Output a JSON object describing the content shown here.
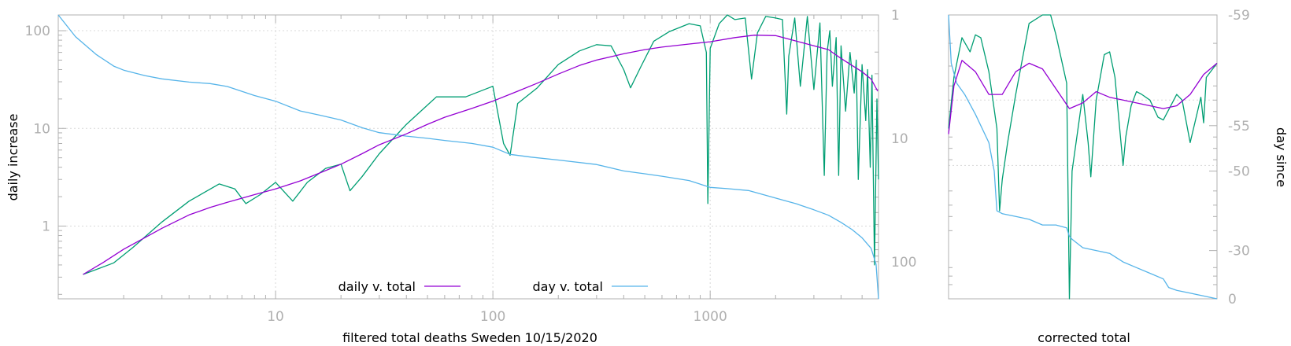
{
  "chart_data": [
    {
      "type": "line",
      "xlabel": "filtered total deaths Sweden 10/15/2020",
      "ylabel": "daily increase",
      "y2label": "",
      "xscale": "log",
      "yscale": "log",
      "y2scale": "log-reversed",
      "xlim": [
        1.0,
        5950
      ],
      "ylim": [
        0.18,
        145
      ],
      "y2lim": [
        1,
        200
      ],
      "x_ticks": [
        "10",
        "100",
        "1000"
      ],
      "y_ticks": [
        "1",
        "10",
        "100"
      ],
      "y2_ticks": [
        "1",
        "10",
        "100"
      ],
      "grid": true,
      "legend": "bottom-center",
      "colors": {
        "daily_v_total": "#9400d3",
        "day_v_total": "#56b4e9",
        "raw_daily": "#009e73"
      },
      "series": [
        {
          "name": "daily v. total",
          "axis": "y",
          "x": [
            1.3,
            1.6,
            2,
            2.5,
            3,
            4,
            5,
            6,
            8,
            10,
            13,
            16,
            20,
            25,
            30,
            40,
            50,
            60,
            80,
            100,
            130,
            160,
            200,
            250,
            300,
            400,
            500,
            600,
            800,
            1000,
            1300,
            1600,
            2000,
            2500,
            3000,
            3500,
            4000,
            4500,
            5000,
            5500,
            5900
          ],
          "values": [
            0.32,
            0.42,
            0.58,
            0.76,
            0.95,
            1.3,
            1.55,
            1.75,
            2.1,
            2.4,
            2.9,
            3.5,
            4.3,
            5.5,
            6.8,
            8.8,
            11,
            13,
            16,
            19,
            24,
            29,
            36,
            44,
            50,
            58,
            64,
            68,
            73,
            77,
            85,
            90,
            89,
            78,
            70,
            64,
            52,
            44,
            38,
            32,
            24
          ]
        },
        {
          "name": "day v. total",
          "axis": "y2",
          "x": [
            1.0,
            1.2,
            1.5,
            1.8,
            2,
            2.5,
            3,
            4,
            5,
            6,
            8,
            10,
            13,
            16,
            20,
            25,
            30,
            40,
            50,
            60,
            80,
            100,
            120,
            150,
            200,
            300,
            400,
            500,
            600,
            800,
            1000,
            1200,
            1500,
            2000,
            2500,
            3000,
            3500,
            4000,
            4500,
            5000,
            5500,
            5800,
            5950
          ],
          "values": [
            1.0,
            1.5,
            2.1,
            2.6,
            2.8,
            3.1,
            3.3,
            3.5,
            3.6,
            3.8,
            4.5,
            5.0,
            6.0,
            6.5,
            7.1,
            8.2,
            9.0,
            9.6,
            10.0,
            10.4,
            11.0,
            11.8,
            13.5,
            14.2,
            15.0,
            16.3,
            18.4,
            19.4,
            20.3,
            22.0,
            25.0,
            25.6,
            26.5,
            30.5,
            34.0,
            38.0,
            42.0,
            48.0,
            55.0,
            64.0,
            78.0,
            105.0,
            200.0
          ]
        },
        {
          "name": "",
          "axis": "y",
          "x": [
            1.3,
            1.8,
            2.2,
            3,
            4,
            5.5,
            6.5,
            7.3,
            8.5,
            10,
            12,
            14,
            17,
            20,
            22,
            25,
            30,
            40,
            55,
            75,
            100,
            112,
            120,
            130,
            160,
            200,
            250,
            300,
            350,
            400,
            430,
            480,
            550,
            650,
            800,
            900,
            960,
            975,
            1000,
            1100,
            1200,
            1300,
            1450,
            1550,
            1650,
            1800,
            2000,
            2150,
            2250,
            2300,
            2450,
            2600,
            2800,
            3000,
            3200,
            3350,
            3450,
            3550,
            3650,
            3800,
            3900,
            4000,
            4200,
            4400,
            4600,
            4700,
            4800,
            5000,
            5200,
            5300,
            5450,
            5550,
            5700,
            5850,
            5950
          ],
          "values": [
            0.32,
            0.42,
            0.6,
            1.1,
            1.8,
            2.7,
            2.4,
            1.7,
            2.1,
            2.8,
            1.8,
            2.8,
            3.9,
            4.3,
            2.3,
            3.2,
            5.5,
            11,
            21,
            21,
            27,
            7,
            5.3,
            18,
            26,
            45,
            62,
            72,
            70,
            40,
            26,
            43,
            78,
            98,
            118,
            112,
            60,
            1.7,
            66,
            118,
            145,
            130,
            135,
            32,
            95,
            140,
            135,
            130,
            14,
            55,
            135,
            27,
            140,
            25,
            120,
            3.3,
            60,
            100,
            27,
            85,
            3.3,
            70,
            15,
            60,
            23,
            50,
            3,
            45,
            12,
            40,
            4,
            35,
            0.4,
            20,
            3
          ]
        }
      ]
    },
    {
      "type": "line",
      "xlabel": "corrected total",
      "ylabel": "",
      "y2label": "day since",
      "x_ticks": [],
      "y2_ticks": [
        "-59",
        "-55",
        "-50",
        "-30",
        "0"
      ],
      "legend": "none",
      "series": [
        {
          "name": "",
          "x": [
            0,
            2,
            5,
            10,
            15,
            20,
            25,
            30,
            35,
            40,
            45,
            50,
            55,
            60,
            65,
            70,
            75,
            80,
            85,
            90,
            95,
            100
          ],
          "values": [
            0.58,
            0.75,
            0.84,
            0.8,
            0.72,
            0.72,
            0.8,
            0.83,
            0.81,
            0.74,
            0.67,
            0.69,
            0.73,
            0.71,
            0.7,
            0.69,
            0.68,
            0.67,
            0.68,
            0.72,
            0.79,
            0.83
          ]
        },
        {
          "name": "",
          "x": [
            0,
            1,
            3,
            6,
            10,
            15,
            17,
            18,
            20,
            25,
            30,
            35,
            40,
            44,
            45,
            46,
            50,
            55,
            60,
            65,
            70,
            75,
            80,
            82,
            85,
            90,
            95,
            100
          ],
          "values": [
            1.0,
            0.83,
            0.76,
            0.72,
            0.65,
            0.55,
            0.45,
            0.31,
            0.3,
            0.29,
            0.28,
            0.26,
            0.26,
            0.25,
            0.22,
            0.21,
            0.18,
            0.17,
            0.16,
            0.13,
            0.11,
            0.09,
            0.07,
            0.04,
            0.03,
            0.02,
            0.01,
            0.0
          ]
        },
        {
          "name": "",
          "x": [
            0,
            2,
            5,
            8,
            10,
            12,
            15,
            18,
            19,
            20,
            22,
            25,
            30,
            35,
            38,
            40,
            44,
            45,
            46,
            50,
            52,
            53,
            55,
            58,
            60,
            62,
            65,
            66,
            68,
            70,
            72,
            75,
            78,
            80,
            85,
            87,
            90,
            92,
            94,
            95,
            96,
            100
          ],
          "values": [
            0.6,
            0.78,
            0.92,
            0.87,
            0.93,
            0.92,
            0.8,
            0.6,
            0.31,
            0.42,
            0.55,
            0.72,
            0.97,
            1.0,
            1.0,
            0.93,
            0.76,
            0.0,
            0.45,
            0.72,
            0.55,
            0.43,
            0.7,
            0.86,
            0.87,
            0.78,
            0.47,
            0.57,
            0.68,
            0.73,
            0.72,
            0.7,
            0.64,
            0.63,
            0.72,
            0.7,
            0.55,
            0.63,
            0.71,
            0.62,
            0.78,
            0.83
          ]
        }
      ]
    }
  ]
}
